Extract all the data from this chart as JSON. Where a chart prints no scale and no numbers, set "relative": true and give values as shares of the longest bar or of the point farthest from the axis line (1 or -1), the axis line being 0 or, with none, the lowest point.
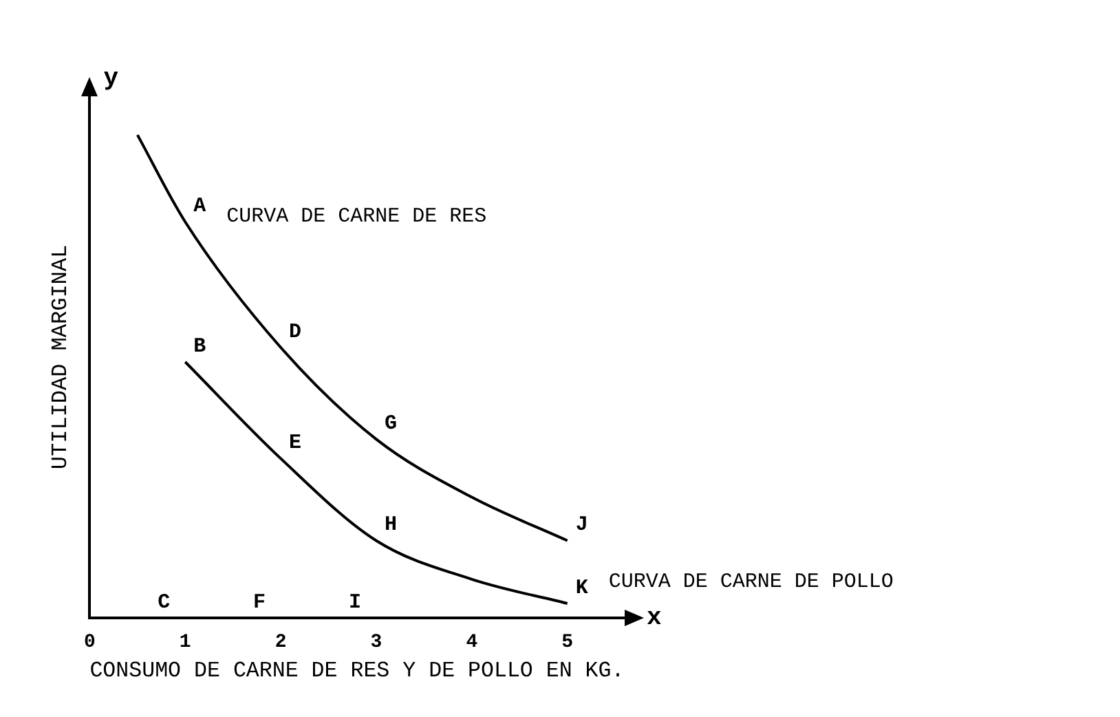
{
  "chart_data": {
    "type": "line",
    "relative": true,
    "xlabel": "CONSUMO DE CARNE DE RES Y DE POLLO EN KG.",
    "ylabel": "UTILIDAD MARGINAL",
    "xlim": [
      0,
      5.6
    ],
    "xticks": [
      0,
      1,
      2,
      3,
      4,
      5
    ],
    "grid": false,
    "legend": false,
    "marker": "none",
    "line_style": "solid",
    "series": [
      {
        "name": "CURVA DE CARNE DE RES",
        "color": "#000000",
        "x": [
          0.5,
          1,
          2,
          3,
          4,
          5
        ],
        "values": [
          1,
          0.82,
          0.56,
          0.37,
          0.25,
          0.16
        ]
      },
      {
        "name": "CURVA DE CARNE DE POLLO",
        "color": "#000000",
        "x": [
          1,
          2,
          3,
          4,
          5
        ],
        "values": [
          0.53,
          0.33,
          0.16,
          0.08,
          0.03
        ]
      }
    ],
    "annotations": [
      "y",
      "x",
      "C",
      "F",
      "I",
      {
        "text": "A",
        "x": 1,
        "y": 0.82
      },
      {
        "text": "D",
        "x": 2,
        "y": 0.56
      },
      {
        "text": "G",
        "x": 3,
        "y": 0.37
      },
      {
        "text": "J",
        "x": 5,
        "y": 0.16
      },
      {
        "text": "B",
        "x": 1,
        "y": 0.53
      },
      {
        "text": "E",
        "x": 2,
        "y": 0.33
      },
      {
        "text": "H",
        "x": 3,
        "y": 0.16
      },
      {
        "text": "K",
        "x": 5,
        "y": 0.03
      }
    ]
  }
}
